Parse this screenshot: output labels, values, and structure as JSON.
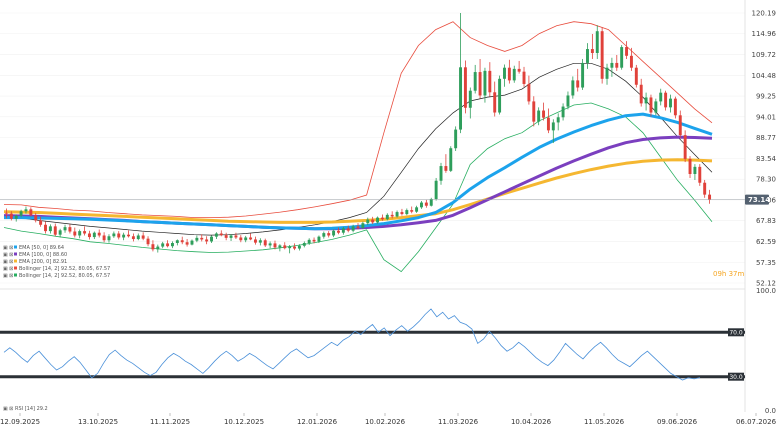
{
  "chart_data": [
    {
      "type": "candlestick",
      "y_ticks": [
        "120.19",
        "114.96",
        "109.72",
        "104.48",
        "99.25",
        "94.01",
        "88.77",
        "83.54",
        "78.30",
        "73.06",
        "67.83",
        "62.59",
        "57.35",
        "52.12"
      ],
      "ylim": [
        52.12,
        120.19
      ],
      "x_ticks": [
        "12.09.2025",
        "13.10.2025",
        "11.11.2025",
        "10.12.2025",
        "12.01.2026",
        "10.02.2026",
        "11.03.2026",
        "10.04.2026",
        "11.05.2026",
        "09.06.2026",
        "06.07.2026"
      ],
      "last_price": "73.14",
      "countdown": "09h 37m",
      "legend": [
        {
          "label": "EMA [50, 0] 89.64",
          "color": "#1ca3ec"
        },
        {
          "label": "EMA [100, 0] 88.60",
          "color": "#7b3fbf"
        },
        {
          "label": "EMA [200, 0] 82.91",
          "color": "#f5b731"
        },
        {
          "label": "Bollinger [14, 2] 92.52, 80.05, 67.57",
          "color": "#e84c3d"
        },
        {
          "label": "Bollinger [14, 2] 92.52, 80.05, 67.57",
          "color": "#27ae60"
        }
      ],
      "candles": [
        [
          69.8,
          70.9,
          68.4,
          69.6
        ],
        [
          69.6,
          70.2,
          67.9,
          68.3
        ],
        [
          68.3,
          69.4,
          67.6,
          69.1
        ],
        [
          69.1,
          70.6,
          68.7,
          70.2
        ],
        [
          70.2,
          71.4,
          69.6,
          70.7
        ],
        [
          70.7,
          71.2,
          68.9,
          69.2
        ],
        [
          69.2,
          69.8,
          67.4,
          67.9
        ],
        [
          67.9,
          68.8,
          66.3,
          66.8
        ],
        [
          66.8,
          67.6,
          64.6,
          65.2
        ],
        [
          65.2,
          66.9,
          64.6,
          66.4
        ],
        [
          66.4,
          67.1,
          63.9,
          64.3
        ],
        [
          64.3,
          65.8,
          63.6,
          65.4
        ],
        [
          65.4,
          66.8,
          64.8,
          66.2
        ],
        [
          66.2,
          66.9,
          64.6,
          65.1
        ],
        [
          65.1,
          66.1,
          63.6,
          64.1
        ],
        [
          64.1,
          65.6,
          63.4,
          65.2
        ],
        [
          65.2,
          66.4,
          64.1,
          64.6
        ],
        [
          64.6,
          65.3,
          63.1,
          63.7
        ],
        [
          63.7,
          65.1,
          63.2,
          64.8
        ],
        [
          64.8,
          65.6,
          63.6,
          64.1
        ],
        [
          64.1,
          64.9,
          62.4,
          62.9
        ],
        [
          62.9,
          64.4,
          62.3,
          63.9
        ],
        [
          63.9,
          65.1,
          63.5,
          64.6
        ],
        [
          64.6,
          65.2,
          63.1,
          63.6
        ],
        [
          63.6,
          64.8,
          62.9,
          64.3
        ],
        [
          64.3,
          65.4,
          63.6,
          63.9
        ],
        [
          63.9,
          64.6,
          62.6,
          63.2
        ],
        [
          63.2,
          64.6,
          62.9,
          64.1
        ],
        [
          64.1,
          64.9,
          62.9,
          63.3
        ],
        [
          63.3,
          63.9,
          61.4,
          61.9
        ],
        [
          61.9,
          62.9,
          60.1,
          60.6
        ],
        [
          60.6,
          61.8,
          59.8,
          61.3
        ],
        [
          61.3,
          62.5,
          60.9,
          62.1
        ],
        [
          62.1,
          62.9,
          61.1,
          61.4
        ],
        [
          61.4,
          62.6,
          60.9,
          62.2
        ],
        [
          62.2,
          63.1,
          61.6,
          62.9
        ],
        [
          62.9,
          63.8,
          61.9,
          62.4
        ],
        [
          62.4,
          63.2,
          61.3,
          61.8
        ],
        [
          61.8,
          63.1,
          61.6,
          62.8
        ],
        [
          62.8,
          64.1,
          62.4,
          63.5
        ],
        [
          63.5,
          64.4,
          62.6,
          63.1
        ],
        [
          63.1,
          63.9,
          61.9,
          62.6
        ],
        [
          62.6,
          64.1,
          62.2,
          63.8
        ],
        [
          63.8,
          64.9,
          63.2,
          64.6
        ],
        [
          64.6,
          65.4,
          63.9,
          64.2
        ],
        [
          64.2,
          64.8,
          62.9,
          63.5
        ],
        [
          63.5,
          64.4,
          62.7,
          64.1
        ],
        [
          64.1,
          64.8,
          63.2,
          63.6
        ],
        [
          63.6,
          64.2,
          62.4,
          62.9
        ],
        [
          62.9,
          64.0,
          62.4,
          63.6
        ],
        [
          63.6,
          64.6,
          62.9,
          63.1
        ],
        [
          63.1,
          63.8,
          61.8,
          62.3
        ],
        [
          62.3,
          63.4,
          61.6,
          62.9
        ],
        [
          62.9,
          63.3,
          61.2,
          61.6
        ],
        [
          61.6,
          62.6,
          60.9,
          62.1
        ],
        [
          62.1,
          62.8,
          60.6,
          61.1
        ],
        [
          61.1,
          61.9,
          60.1,
          61.6
        ],
        [
          61.6,
          62.4,
          60.6,
          60.9
        ],
        [
          60.9,
          61.7,
          59.6,
          61.3
        ],
        [
          61.3,
          62.1,
          60.4,
          60.8
        ],
        [
          60.8,
          61.9,
          60.3,
          61.5
        ],
        [
          61.5,
          62.6,
          61.1,
          62.2
        ],
        [
          62.2,
          63.4,
          61.7,
          63.0
        ],
        [
          63.0,
          63.6,
          62.1,
          62.6
        ],
        [
          62.6,
          64.1,
          62.2,
          63.8
        ],
        [
          63.8,
          65.1,
          63.3,
          64.7
        ],
        [
          64.7,
          65.2,
          63.6,
          64.1
        ],
        [
          64.1,
          65.6,
          63.7,
          65.3
        ],
        [
          65.3,
          66.1,
          64.4,
          64.8
        ],
        [
          64.8,
          66.3,
          64.3,
          65.9
        ],
        [
          65.9,
          66.6,
          64.9,
          65.3
        ],
        [
          65.3,
          66.8,
          64.9,
          66.4
        ],
        [
          66.4,
          67.2,
          65.6,
          66.0
        ],
        [
          66.0,
          67.6,
          65.7,
          67.2
        ],
        [
          67.2,
          68.6,
          66.7,
          68.1
        ],
        [
          68.1,
          68.8,
          67.0,
          67.4
        ],
        [
          67.4,
          68.9,
          67.1,
          68.6
        ],
        [
          68.6,
          69.4,
          67.8,
          68.2
        ],
        [
          68.2,
          69.7,
          67.9,
          69.3
        ],
        [
          69.3,
          70.2,
          68.4,
          68.9
        ],
        [
          68.9,
          70.4,
          68.6,
          70.0
        ],
        [
          70.0,
          70.8,
          69.1,
          69.5
        ],
        [
          69.5,
          70.9,
          69.2,
          70.5
        ],
        [
          70.5,
          71.4,
          69.7,
          70.1
        ],
        [
          70.1,
          71.6,
          69.8,
          71.2
        ],
        [
          71.2,
          72.8,
          70.8,
          72.4
        ],
        [
          72.4,
          73.1,
          71.1,
          71.6
        ],
        [
          71.6,
          73.6,
          71.4,
          73.3
        ],
        [
          73.3,
          78.6,
          72.9,
          77.9
        ],
        [
          77.9,
          82.4,
          76.9,
          81.6
        ],
        [
          81.6,
          84.6,
          79.9,
          80.4
        ],
        [
          80.4,
          86.6,
          80.1,
          86.1
        ],
        [
          86.1,
          91.6,
          85.4,
          90.8
        ],
        [
          90.8,
          120.2,
          89.9,
          106.5
        ],
        [
          106.5,
          108.2,
          94.9,
          96.3
        ],
        [
          96.3,
          101.4,
          93.6,
          100.6
        ],
        [
          100.6,
          107.1,
          99.9,
          105.3
        ],
        [
          105.3,
          108.6,
          98.6,
          99.4
        ],
        [
          99.4,
          106.4,
          97.6,
          105.6
        ],
        [
          105.6,
          107.8,
          99.1,
          100.2
        ],
        [
          100.2,
          102.9,
          94.1,
          95.1
        ],
        [
          95.1,
          104.4,
          94.6,
          103.6
        ],
        [
          103.6,
          107.2,
          101.6,
          106.4
        ],
        [
          106.4,
          108.4,
          102.4,
          103.2
        ],
        [
          103.2,
          106.9,
          102.6,
          106.1
        ],
        [
          106.1,
          108.1,
          104.9,
          105.4
        ],
        [
          105.4,
          106.6,
          101.6,
          102.3
        ],
        [
          102.3,
          104.4,
          97.1,
          97.9
        ],
        [
          97.9,
          99.2,
          91.6,
          92.8
        ],
        [
          92.8,
          96.4,
          91.9,
          95.6
        ],
        [
          95.6,
          97.6,
          93.1,
          93.8
        ],
        [
          93.8,
          96.1,
          89.9,
          90.6
        ],
        [
          90.6,
          93.4,
          87.4,
          92.6
        ],
        [
          92.6,
          94.9,
          90.6,
          93.9
        ],
        [
          93.9,
          97.4,
          93.1,
          96.6
        ],
        [
          96.6,
          100.4,
          95.9,
          99.4
        ],
        [
          99.4,
          104.2,
          98.6,
          103.2
        ],
        [
          103.2,
          106.1,
          100.4,
          101.4
        ],
        [
          101.4,
          108.6,
          100.8,
          107.6
        ],
        [
          107.6,
          112.6,
          106.1,
          111.1
        ],
        [
          111.1,
          114.9,
          108.6,
          110.1
        ],
        [
          110.1,
          117.1,
          108.6,
          115.6
        ],
        [
          115.6,
          116.6,
          102.4,
          103.6
        ],
        [
          103.6,
          107.4,
          102.1,
          106.4
        ],
        [
          106.4,
          108.9,
          104.1,
          107.6
        ],
        [
          107.6,
          109.6,
          105.6,
          106.4
        ],
        [
          106.4,
          112.1,
          105.9,
          111.6
        ],
        [
          111.6,
          113.1,
          108.6,
          109.4
        ],
        [
          109.4,
          111.4,
          105.6,
          106.4
        ],
        [
          106.4,
          107.1,
          101.4,
          102.1
        ],
        [
          102.1,
          103.6,
          96.6,
          97.4
        ],
        [
          97.4,
          100.1,
          95.6,
          98.9
        ],
        [
          98.9,
          99.6,
          94.1,
          95.1
        ],
        [
          95.1,
          98.6,
          94.4,
          97.9
        ],
        [
          97.9,
          101.1,
          96.9,
          100.1
        ],
        [
          100.1,
          100.6,
          95.6,
          96.4
        ],
        [
          96.4,
          99.6,
          95.1,
          98.6
        ],
        [
          98.6,
          99.1,
          93.6,
          94.4
        ],
        [
          94.4,
          95.6,
          88.6,
          89.4
        ],
        [
          89.4,
          90.6,
          82.6,
          83.4
        ],
        [
          83.4,
          84.1,
          78.6,
          79.6
        ],
        [
          79.6,
          82.1,
          78.1,
          81.4
        ],
        [
          81.4,
          82.1,
          76.6,
          77.4
        ],
        [
          77.4,
          78.1,
          73.6,
          74.4
        ],
        [
          74.4,
          75.6,
          72.1,
          73.14
        ]
      ],
      "ema50": [
        68.6,
        68.6,
        68.5,
        68.4,
        68.3,
        68.2,
        68.0,
        67.8,
        67.6,
        67.4,
        67.2,
        67.0,
        66.8,
        66.6,
        66.4,
        66.2,
        66.0,
        65.9,
        65.8,
        65.9,
        66.2,
        66.6,
        67.1,
        67.8,
        68.6,
        69.9,
        72.4,
        75.8,
        78.7,
        81.2,
        83.8,
        86.3,
        88.4,
        90.2,
        91.8,
        93.2,
        94.3,
        94.7,
        93.8,
        92.6,
        91.1,
        89.6
      ],
      "ema100": [
        69.1,
        69.0,
        68.9,
        68.7,
        68.5,
        68.3,
        68.1,
        67.9,
        67.6,
        67.4,
        67.2,
        67.0,
        66.8,
        66.6,
        66.4,
        66.2,
        66.0,
        65.9,
        65.8,
        65.8,
        65.9,
        66.1,
        66.4,
        66.8,
        67.3,
        67.9,
        69.2,
        71.1,
        73.1,
        75.1,
        77.1,
        79.1,
        81.1,
        82.9,
        84.6,
        86.2,
        87.5,
        88.3,
        88.7,
        88.9,
        88.8,
        88.6
      ],
      "ema200": [
        70.1,
        70.0,
        69.9,
        69.7,
        69.5,
        69.3,
        69.1,
        68.9,
        68.7,
        68.5,
        68.3,
        68.1,
        67.9,
        67.7,
        67.6,
        67.5,
        67.4,
        67.4,
        67.4,
        67.5,
        67.7,
        67.9,
        68.2,
        68.6,
        69.1,
        69.6,
        70.6,
        71.9,
        73.3,
        74.7,
        76.0,
        77.3,
        78.6,
        79.7,
        80.7,
        81.6,
        82.3,
        82.8,
        83.1,
        83.2,
        83.1,
        82.91
      ],
      "bb_upper": [
        71.9,
        71.8,
        71.2,
        70.9,
        70.5,
        70.3,
        69.9,
        69.6,
        69.3,
        69.1,
        68.9,
        68.6,
        68.6,
        68.7,
        69.0,
        69.5,
        70.0,
        70.6,
        71.3,
        72.1,
        73.0,
        74.3,
        90.0,
        105.0,
        112.0,
        116.0,
        118.0,
        114.0,
        112.0,
        110.5,
        112.0,
        115.0,
        117.0,
        118.0,
        117.5,
        116.0,
        112.0,
        108.0,
        104.0,
        100.0,
        96.0,
        92.52
      ],
      "bb_mid": [
        69.0,
        68.5,
        67.9,
        67.4,
        66.9,
        66.4,
        66.0,
        65.6,
        65.2,
        64.9,
        64.6,
        64.3,
        64.2,
        64.3,
        64.6,
        65.0,
        65.5,
        66.1,
        66.8,
        67.6,
        68.6,
        69.9,
        74.0,
        80.0,
        86.0,
        91.0,
        95.0,
        98.0,
        99.0,
        99.5,
        101.0,
        104.0,
        106.0,
        107.5,
        107.5,
        106.0,
        103.0,
        99.0,
        94.0,
        89.0,
        84.5,
        80.05
      ],
      "bb_lower": [
        66.1,
        65.2,
        64.6,
        63.9,
        63.3,
        62.5,
        62.1,
        61.6,
        61.1,
        60.7,
        60.3,
        60.0,
        59.8,
        59.9,
        60.2,
        60.5,
        61.0,
        61.6,
        62.3,
        63.1,
        64.2,
        65.5,
        58.0,
        55.0,
        60.0,
        66.0,
        72.0,
        82.0,
        86.0,
        88.5,
        90.0,
        93.0,
        95.0,
        97.0,
        97.5,
        96.0,
        94.0,
        90.0,
        84.0,
        78.0,
        73.0,
        67.57
      ]
    },
    {
      "type": "line",
      "title": "RSI [14] 29.2",
      "y_ticks": [
        "100.0",
        "70.0",
        "30.0",
        "0.0"
      ],
      "ylim": [
        0,
        100
      ],
      "levels": [
        70,
        30
      ],
      "values": [
        52,
        56,
        52,
        47,
        43,
        49,
        53,
        47,
        41,
        36,
        39,
        44,
        48,
        43,
        36,
        29,
        33,
        42,
        50,
        54,
        49,
        45,
        42,
        38,
        34,
        31,
        34,
        41,
        47,
        51,
        48,
        44,
        41,
        37,
        33,
        38,
        44,
        49,
        53,
        49,
        44,
        47,
        51,
        48,
        44,
        40,
        37,
        42,
        47,
        52,
        55,
        51,
        47,
        49,
        53,
        57,
        61,
        58,
        63,
        66,
        71,
        68,
        73,
        77,
        70,
        74,
        67,
        72,
        76,
        71,
        75,
        80,
        86,
        91,
        84,
        88,
        82,
        85,
        79,
        77,
        73,
        60,
        64,
        71,
        65,
        58,
        53,
        56,
        61,
        57,
        52,
        47,
        43,
        40,
        45,
        52,
        60,
        55,
        50,
        46,
        52,
        57,
        61,
        56,
        50,
        45,
        42,
        39,
        44,
        49,
        53,
        48,
        43,
        38,
        33,
        30,
        27,
        29,
        28,
        29.2
      ]
    }
  ]
}
